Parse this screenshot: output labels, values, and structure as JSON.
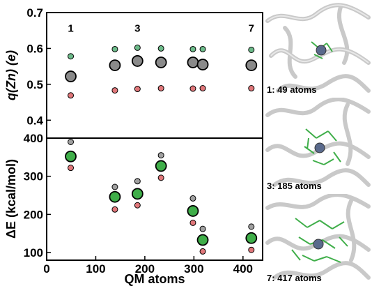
{
  "chart_data": [
    {
      "type": "scatter",
      "panel": "top",
      "ylabel": "q(Zn) (e)",
      "ylim": [
        0.35,
        0.7
      ],
      "yticks": [
        0.4,
        0.5,
        0.6,
        0.7
      ],
      "ytick_labels": [
        "0.4",
        "0.5",
        "0.6",
        "0.7"
      ],
      "xlim": [
        0,
        440
      ],
      "series": [
        {
          "color": "#6dbb8a",
          "size": "small",
          "points": [
            [
              49,
              0.578
            ],
            [
              139,
              0.598
            ],
            [
              185,
              0.602
            ],
            [
              233,
              0.6
            ],
            [
              298,
              0.598
            ],
            [
              318,
              0.598
            ],
            [
              417,
              0.596
            ]
          ]
        },
        {
          "color": "#8a8a8a",
          "size": "large",
          "points": [
            [
              49,
              0.522
            ],
            [
              139,
              0.553
            ],
            [
              185,
              0.565
            ],
            [
              233,
              0.561
            ],
            [
              298,
              0.561
            ],
            [
              318,
              0.555
            ],
            [
              417,
              0.553
            ]
          ]
        },
        {
          "color": "#e0777a",
          "size": "small",
          "points": [
            [
              49,
              0.469
            ],
            [
              139,
              0.483
            ],
            [
              185,
              0.487
            ],
            [
              233,
              0.489
            ],
            [
              298,
              0.488
            ],
            [
              318,
              0.489
            ],
            [
              417,
              0.489
            ]
          ]
        }
      ],
      "annotations": [
        {
          "text": "1",
          "x": 49,
          "y": 0.647
        },
        {
          "text": "3",
          "x": 185,
          "y": 0.647
        },
        {
          "text": "7",
          "x": 417,
          "y": 0.647
        }
      ]
    },
    {
      "type": "scatter",
      "panel": "bottom",
      "ylabel": "ΔE (kcal/mol)",
      "xlabel": "QM atoms",
      "ylim": [
        80,
        400
      ],
      "yticks": [
        100,
        200,
        300,
        400
      ],
      "ytick_labels": [
        "100",
        "200",
        "300",
        "400"
      ],
      "xlim": [
        0,
        440
      ],
      "xticks": [
        0,
        100,
        200,
        300,
        400
      ],
      "xtick_labels": [
        "0",
        "100",
        "200",
        "300",
        "400"
      ],
      "series": [
        {
          "color": "#a0a0a0",
          "size": "small",
          "points": [
            [
              49,
              390
            ],
            [
              139,
              272
            ],
            [
              185,
              287
            ],
            [
              233,
              355
            ],
            [
              298,
              242
            ],
            [
              318,
              162
            ],
            [
              417,
              168
            ]
          ]
        },
        {
          "color": "#3fae49",
          "size": "large",
          "points": [
            [
              49,
              352
            ],
            [
              139,
              246
            ],
            [
              185,
              254
            ],
            [
              233,
              327
            ],
            [
              298,
              209
            ],
            [
              318,
              133
            ],
            [
              417,
              138
            ]
          ]
        },
        {
          "color": "#e0777a",
          "size": "small",
          "points": [
            [
              49,
              322
            ],
            [
              139,
              213
            ],
            [
              185,
              224
            ],
            [
              233,
              296
            ],
            [
              298,
              178
            ],
            [
              318,
              103
            ],
            [
              417,
              107
            ]
          ]
        }
      ]
    }
  ],
  "structures": [
    {
      "caption": "1: 49 atoms",
      "icon": "protein-structure-image"
    },
    {
      "caption": "3: 185 atoms",
      "icon": "protein-structure-image"
    },
    {
      "caption": "7: 417 atoms",
      "icon": "protein-structure-image"
    }
  ]
}
